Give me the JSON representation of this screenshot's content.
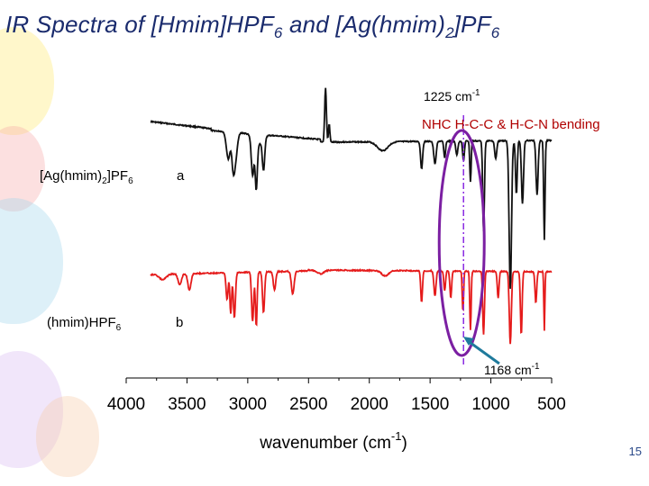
{
  "slide": {
    "title_prefix": "IR Spectra of [Hmim]HPF",
    "title_sub1": "6",
    "title_mid": " and [Ag(hmim)",
    "title_sub2": "2",
    "title_mid2": "]PF",
    "title_sub3": "6",
    "number": "15"
  },
  "colors": {
    "title": "#1a2b6d",
    "curve_a": "#111111",
    "curve_b": "#e51b1b",
    "ellipse": "#7b1fa2",
    "marker_line": "#8a2be2",
    "arrow": "#1f7a9c",
    "annotation_text": "#000000",
    "bending_text": "#b00000"
  },
  "chart_data": {
    "type": "line",
    "x_reversed": true,
    "xlim": [
      4000,
      500
    ],
    "xticks": [
      "4000",
      "3500",
      "3000",
      "2500",
      "2000",
      "1500",
      "1000",
      "500"
    ],
    "xlabel_base": "wavenumber (cm",
    "xlabel_sup": "-1",
    "xlabel_close": ")",
    "series": [
      {
        "label_main": "[Ag(hmim)",
        "label_sub1": "2",
        "label_mid": "]PF",
        "label_sub2": "6",
        "letter": "a",
        "color": "#111111",
        "x_start": 3800
      },
      {
        "label_main": "(hmim)HPF",
        "label_sub1": "6",
        "letter": "b",
        "color": "#e51b1b",
        "x_start": 3800
      }
    ],
    "annotations": {
      "line_1225_base": "1225 cm",
      "line_1225_sup": "-1",
      "bending": "NHC H-C-C & H-C-N bending",
      "arrow_1168_base": "1168 cm",
      "arrow_1168_sup": "-1"
    },
    "marker_x": 1225,
    "arrow_x": 1168
  }
}
